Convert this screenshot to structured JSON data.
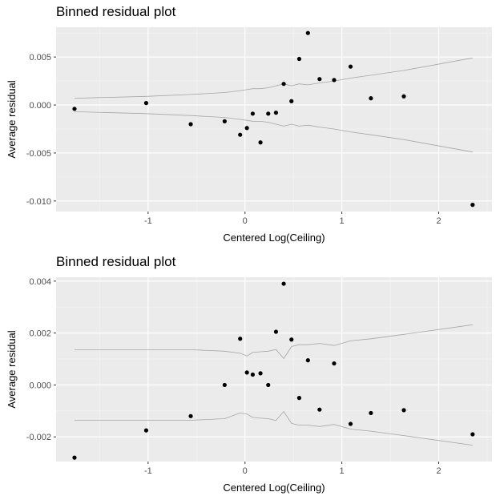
{
  "chart_data": [
    {
      "type": "scatter",
      "title": "Binned residual plot",
      "xlabel": "Centered Log(Ceiling)",
      "ylabel": "Average residual",
      "xlim": [
        -1.95,
        2.55
      ],
      "ylim": [
        -0.0111,
        0.0081
      ],
      "xticks": [
        -1,
        0,
        1,
        2
      ],
      "xtick_labels": [
        "-1",
        "0",
        "1",
        "2"
      ],
      "yticks": [
        0.005,
        0.0,
        -0.005,
        -0.01
      ],
      "ytick_labels": [
        "0.005",
        "0.000",
        "-0.005",
        "-0.010"
      ],
      "grid": true,
      "points": {
        "x": [
          -1.76,
          -1.02,
          -0.56,
          -0.21,
          -0.05,
          0.02,
          0.08,
          0.16,
          0.24,
          0.32,
          0.4,
          0.48,
          0.56,
          0.65,
          0.77,
          0.92,
          1.09,
          1.3,
          1.64,
          2.35
        ],
        "y": [
          -0.0004,
          0.0002,
          -0.002,
          -0.0017,
          -0.0031,
          -0.0024,
          -0.0009,
          -0.0039,
          -0.0009,
          -0.0008,
          0.0022,
          0.0004,
          0.0048,
          0.0075,
          0.0027,
          0.0026,
          0.004,
          0.0007,
          0.0009,
          -0.0104
        ]
      },
      "bands": {
        "x": [
          -1.76,
          -1.02,
          -0.56,
          -0.21,
          -0.05,
          0.02,
          0.08,
          0.16,
          0.24,
          0.32,
          0.4,
          0.48,
          0.56,
          0.65,
          0.77,
          0.92,
          1.09,
          1.3,
          1.64,
          2.35
        ],
        "upper": [
          0.0007,
          0.0009,
          0.0011,
          0.0013,
          0.0015,
          0.0016,
          0.0017,
          0.0017,
          0.0018,
          0.002,
          0.0022,
          0.002,
          0.0022,
          0.0021,
          0.0023,
          0.0025,
          0.0028,
          0.0031,
          0.0036,
          0.0049
        ],
        "lower": [
          -0.0007,
          -0.0009,
          -0.0011,
          -0.0013,
          -0.0015,
          -0.0016,
          -0.0017,
          -0.0017,
          -0.0018,
          -0.002,
          -0.0022,
          -0.002,
          -0.0022,
          -0.0021,
          -0.0023,
          -0.0025,
          -0.0028,
          -0.0031,
          -0.0036,
          -0.0049
        ]
      }
    },
    {
      "type": "scatter",
      "title": "Binned residual plot",
      "xlabel": "Centered Log(Ceiling)",
      "ylabel": "Average residual",
      "xlim": [
        -1.95,
        2.55
      ],
      "ylim": [
        -0.00295,
        0.00415
      ],
      "xticks": [
        -1,
        0,
        1,
        2
      ],
      "xtick_labels": [
        "-1",
        "0",
        "1",
        "2"
      ],
      "yticks": [
        0.004,
        0.002,
        0.0,
        -0.002
      ],
      "ytick_labels": [
        "0.004",
        "0.002",
        "0.000",
        "-0.002"
      ],
      "grid": true,
      "points": {
        "x": [
          -1.76,
          -1.02,
          -0.56,
          -0.21,
          -0.05,
          0.02,
          0.08,
          0.16,
          0.24,
          0.32,
          0.4,
          0.48,
          0.56,
          0.65,
          0.77,
          0.92,
          1.09,
          1.3,
          1.64,
          2.35
        ],
        "y": [
          -0.0028,
          -0.00175,
          -0.0012,
          0.0,
          0.00178,
          0.00048,
          0.0004,
          0.00045,
          0.0,
          0.00205,
          0.0039,
          0.00175,
          -0.0005,
          0.00095,
          -0.00095,
          0.00083,
          -0.0015,
          -0.00108,
          -0.00097,
          -0.0019
        ]
      },
      "bands": {
        "x": [
          -1.76,
          -1.02,
          -0.56,
          -0.21,
          -0.05,
          0.02,
          0.08,
          0.16,
          0.24,
          0.32,
          0.4,
          0.48,
          0.56,
          0.65,
          0.77,
          0.92,
          1.09,
          1.3,
          1.64,
          2.35
        ],
        "upper": [
          0.00136,
          0.00136,
          0.00136,
          0.0013,
          0.00122,
          0.00112,
          0.00125,
          0.00128,
          0.0013,
          0.00137,
          0.00102,
          0.00148,
          0.00155,
          0.00155,
          0.0016,
          0.00152,
          0.0017,
          0.00178,
          0.00195,
          0.00232
        ],
        "lower": [
          -0.00136,
          -0.00136,
          -0.00136,
          -0.0013,
          -0.00108,
          -0.00112,
          -0.00125,
          -0.00128,
          -0.0013,
          -0.00137,
          -0.00102,
          -0.00148,
          -0.00155,
          -0.00155,
          -0.0016,
          -0.00152,
          -0.0017,
          -0.00178,
          -0.00195,
          -0.00232
        ]
      }
    }
  ]
}
